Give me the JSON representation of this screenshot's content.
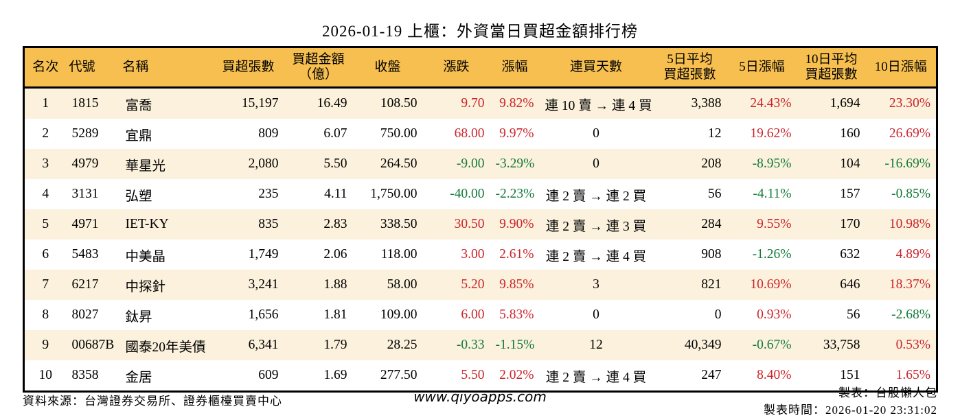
{
  "title": "2026-01-19 上櫃：外資當日買超金額排行榜",
  "colors": {
    "positive_red": "#cb242b",
    "negative_green": "#127a38",
    "header_bg": "#f6bf4f",
    "stripe_bg": "#fbf1dc",
    "border": "#000000"
  },
  "chart_data": {
    "type": "table",
    "title": "2026-01-19 上櫃：外資當日買超金額排行榜",
    "columns": [
      "名次",
      "代號",
      "名稱",
      "買超張數",
      "買超金額\n（億）",
      "收盤",
      "漲跌",
      "漲幅",
      "連買天數",
      "5日平均\n買超張數",
      "5日漲幅",
      "10日平均\n買超張數",
      "10日漲幅"
    ],
    "rows": [
      [
        "1",
        "1815",
        "富喬",
        "15,197",
        "16.49",
        "108.50",
        "9.70",
        "9.82%",
        "連 10 賣 → 連 4 買",
        "3,388",
        "24.43%",
        "1,694",
        "23.30%"
      ],
      [
        "2",
        "5289",
        "宜鼎",
        "809",
        "6.07",
        "750.00",
        "68.00",
        "9.97%",
        "0",
        "12",
        "19.62%",
        "160",
        "26.69%"
      ],
      [
        "3",
        "4979",
        "華星光",
        "2,080",
        "5.50",
        "264.50",
        "-9.00",
        "-3.29%",
        "0",
        "208",
        "-8.95%",
        "104",
        "-16.69%"
      ],
      [
        "4",
        "3131",
        "弘塑",
        "235",
        "4.11",
        "1,750.00",
        "-40.00",
        "-2.23%",
        "連 2 賣 → 連 2 買",
        "56",
        "-4.11%",
        "157",
        "-0.85%"
      ],
      [
        "5",
        "4971",
        "IET-KY",
        "835",
        "2.83",
        "338.50",
        "30.50",
        "9.90%",
        "連 2 賣 → 連 3 買",
        "284",
        "9.55%",
        "170",
        "10.98%"
      ],
      [
        "6",
        "5483",
        "中美晶",
        "1,749",
        "2.06",
        "118.00",
        "3.00",
        "2.61%",
        "連 2 賣 → 連 4 買",
        "908",
        "-1.26%",
        "632",
        "4.89%"
      ],
      [
        "7",
        "6217",
        "中探針",
        "3,241",
        "1.88",
        "58.00",
        "5.20",
        "9.85%",
        "3",
        "821",
        "10.69%",
        "646",
        "18.37%"
      ],
      [
        "8",
        "8027",
        "鈦昇",
        "1,656",
        "1.81",
        "109.00",
        "6.00",
        "5.83%",
        "0",
        "0",
        "0.93%",
        "56",
        "-2.68%"
      ],
      [
        "9",
        "00687B",
        "國泰20年美債",
        "6,341",
        "1.79",
        "28.25",
        "-0.33",
        "-1.15%",
        "12",
        "40,349",
        "-0.67%",
        "33,758",
        "0.53%"
      ],
      [
        "10",
        "8358",
        "金居",
        "609",
        "1.69",
        "277.50",
        "5.50",
        "2.02%",
        "連 2 賣 → 連 4 買",
        "247",
        "8.40%",
        "151",
        "1.65%"
      ]
    ]
  },
  "footer": {
    "source": "資料來源：台灣證券交易所、證券櫃檯買賣中心",
    "website": "www.qiyoapps.com",
    "author": "製表：台股懶人包",
    "timestamp": "製表時間：2026-01-20 23:31:02"
  }
}
